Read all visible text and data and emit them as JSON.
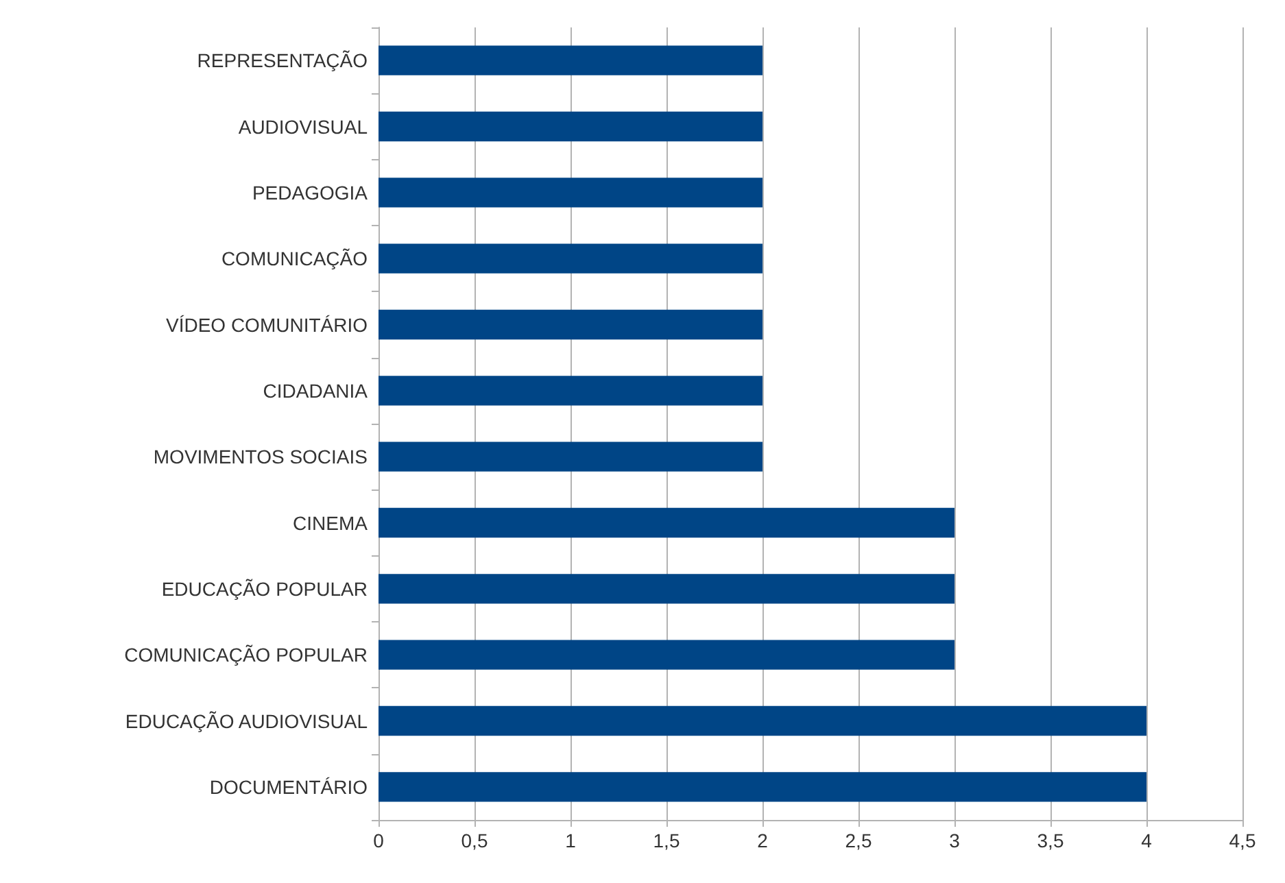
{
  "chart_data": {
    "type": "bar",
    "orientation": "horizontal",
    "categories": [
      "REPRESENTAÇÃO",
      "AUDIOVISUAL",
      "PEDAGOGIA",
      "COMUNICAÇÃO",
      "VÍDEO COMUNITÁRIO",
      "CIDADANIA",
      "MOVIMENTOS SOCIAIS",
      "CINEMA",
      "EDUCAÇÃO POPULAR",
      "COMUNICAÇÃO POPULAR",
      "EDUCAÇÃO AUDIOVISUAL",
      "DOCUMENTÁRIO"
    ],
    "values": [
      2,
      2,
      2,
      2,
      2,
      2,
      2,
      3,
      3,
      3,
      4,
      4
    ],
    "color": "#004586",
    "xlim": [
      0,
      4.5
    ],
    "xticks": [
      0,
      {
        "value": 0.5,
        "label": "0,5"
      },
      1,
      {
        "value": 1.5,
        "label": "1,5"
      },
      2,
      {
        "value": 2.5,
        "label": "2,5"
      },
      3,
      {
        "value": 3.5,
        "label": "3,5"
      },
      4,
      {
        "value": 4.5,
        "label": "4,5"
      }
    ],
    "grid": "x"
  }
}
